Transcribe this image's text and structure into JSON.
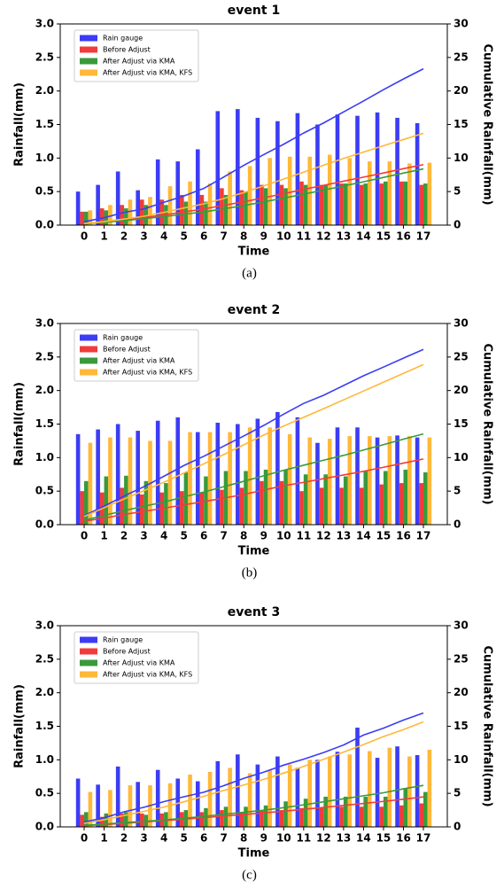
{
  "chart_data": [
    {
      "type": "bar",
      "title": "event 1",
      "caption": "(a)",
      "xlabel": "Time",
      "ylabel": "Rainfall(mm)",
      "y2label": "Cumulative Rainfall(mm)",
      "categories": [
        "0",
        "1",
        "2",
        "3",
        "4",
        "5",
        "6",
        "7",
        "8",
        "9",
        "10",
        "11",
        "12",
        "13",
        "14",
        "15",
        "16",
        "17"
      ],
      "ylim": [
        0,
        3
      ],
      "yticks": [
        {
          "value": 0,
          "label": "0.0"
        },
        {
          "value": 0.5,
          "label": "0.5"
        },
        {
          "value": 1,
          "label": "1.0"
        },
        {
          "value": 1.5,
          "label": "1.5"
        },
        {
          "value": 2,
          "label": "2.0"
        },
        {
          "value": 2.5,
          "label": "2.5"
        },
        {
          "value": 3,
          "label": "3.0"
        }
      ],
      "y2lim": [
        0,
        30
      ],
      "y2ticks": [
        0,
        5,
        10,
        15,
        20,
        25,
        30
      ],
      "legend": "upper left",
      "series": [
        {
          "name": "Rain gauge",
          "type": "bar",
          "color": "#3c3cf5",
          "values": [
            0.5,
            0.6,
            0.8,
            0.52,
            0.98,
            0.95,
            1.13,
            1.7,
            1.73,
            1.6,
            1.55,
            1.67,
            1.5,
            1.65,
            1.63,
            1.68,
            1.6,
            1.52
          ]
        },
        {
          "name": "Before Adjust",
          "type": "bar",
          "color": "#f03c3c",
          "values": [
            0.2,
            0.25,
            0.3,
            0.38,
            0.38,
            0.45,
            0.45,
            0.55,
            0.52,
            0.6,
            0.6,
            0.65,
            0.6,
            0.62,
            0.6,
            0.62,
            0.65,
            0.6
          ]
        },
        {
          "name": "After Adjust via KMA",
          "type": "bar",
          "color": "#3a9a3a",
          "values": [
            0.2,
            0.22,
            0.25,
            0.3,
            0.3,
            0.35,
            0.35,
            0.45,
            0.5,
            0.55,
            0.55,
            0.6,
            0.6,
            0.62,
            0.62,
            0.65,
            0.65,
            0.62
          ]
        },
        {
          "name": "After Adjust via KMA, KFS",
          "type": "bar",
          "color": "#ffb838",
          "values": [
            0.22,
            0.3,
            0.38,
            0.42,
            0.58,
            0.65,
            0.62,
            0.8,
            0.88,
            1.0,
            1.02,
            1.02,
            1.05,
            1.0,
            0.95,
            0.95,
            0.92,
            0.93
          ]
        },
        {
          "type": "line",
          "axis": "y2",
          "color": "#3c3cf5",
          "values": [
            0.5,
            1.1,
            1.9,
            2.42,
            3.4,
            4.35,
            5.48,
            7.18,
            8.91,
            10.51,
            12.06,
            13.73,
            15.23,
            16.88,
            18.51,
            20.19,
            21.79,
            23.31
          ]
        },
        {
          "type": "line",
          "axis": "y2",
          "color": "#f03c3c",
          "values": [
            0.2,
            0.45,
            0.75,
            1.13,
            1.51,
            1.96,
            2.41,
            2.96,
            3.48,
            4.08,
            4.68,
            5.33,
            5.93,
            6.55,
            7.15,
            7.77,
            8.42,
            9.02
          ]
        },
        {
          "type": "line",
          "axis": "y2",
          "color": "#3a9a3a",
          "values": [
            0.2,
            0.42,
            0.67,
            0.97,
            1.27,
            1.62,
            1.97,
            2.42,
            2.92,
            3.47,
            4.02,
            4.62,
            5.22,
            5.84,
            6.46,
            7.11,
            7.76,
            8.38
          ]
        },
        {
          "type": "line",
          "axis": "y2",
          "color": "#ffb838",
          "values": [
            0.22,
            0.52,
            0.9,
            1.32,
            1.9,
            2.55,
            3.17,
            3.97,
            4.85,
            5.85,
            6.87,
            7.89,
            8.94,
            9.94,
            10.89,
            11.84,
            12.76,
            13.69
          ]
        }
      ]
    },
    {
      "type": "bar",
      "title": "event 2",
      "caption": "(b)",
      "xlabel": "Time",
      "ylabel": "Rainfall(mm)",
      "y2label": "Cumulative Rainfall(mm)",
      "categories": [
        "0",
        "1",
        "2",
        "3",
        "4",
        "5",
        "6",
        "7",
        "8",
        "9",
        "10",
        "11",
        "12",
        "13",
        "14",
        "15",
        "16",
        "17"
      ],
      "ylim": [
        0,
        3
      ],
      "yticks": [
        {
          "value": 0,
          "label": "0.0"
        },
        {
          "value": 0.5,
          "label": "0.5"
        },
        {
          "value": 1,
          "label": "1.0"
        },
        {
          "value": 1.5,
          "label": "1.5"
        },
        {
          "value": 2,
          "label": "2.0"
        },
        {
          "value": 2.5,
          "label": "2.5"
        },
        {
          "value": 3,
          "label": "3.0"
        }
      ],
      "y2lim": [
        0,
        30
      ],
      "y2ticks": [
        0,
        5,
        10,
        15,
        20,
        25,
        30
      ],
      "legend": "upper left",
      "series": [
        {
          "name": "Rain gauge",
          "type": "bar",
          "color": "#3c3cf5",
          "values": [
            1.35,
            1.42,
            1.5,
            1.4,
            1.55,
            1.6,
            1.38,
            1.52,
            1.5,
            1.58,
            1.68,
            1.6,
            1.22,
            1.45,
            1.45,
            1.3,
            1.33,
            1.3
          ]
        },
        {
          "name": "Before Adjust",
          "type": "bar",
          "color": "#f03c3c",
          "values": [
            0.5,
            0.48,
            0.55,
            0.45,
            0.48,
            0.5,
            0.48,
            0.52,
            0.55,
            0.65,
            0.65,
            0.5,
            0.55,
            0.55,
            0.55,
            0.6,
            0.62,
            0.62
          ]
        },
        {
          "name": "After Adjust via KMA",
          "type": "bar",
          "color": "#3a9a3a",
          "values": [
            0.65,
            0.72,
            0.73,
            0.65,
            0.62,
            0.78,
            0.72,
            0.8,
            0.8,
            0.82,
            0.82,
            0.75,
            0.75,
            0.72,
            0.8,
            0.8,
            0.82,
            0.78
          ]
        },
        {
          "name": "After Adjust via KMA, KFS",
          "type": "bar",
          "color": "#ffb838",
          "values": [
            1.22,
            1.3,
            1.3,
            1.25,
            1.25,
            1.38,
            1.38,
            1.38,
            1.45,
            1.45,
            1.35,
            1.3,
            1.28,
            1.32,
            1.32,
            1.32,
            1.32,
            1.3
          ]
        },
        {
          "type": "line",
          "axis": "y2",
          "color": "#3c3cf5",
          "values": [
            1.35,
            2.77,
            4.27,
            5.67,
            7.22,
            8.82,
            10.2,
            11.72,
            13.22,
            14.8,
            16.48,
            18.08,
            19.3,
            20.75,
            22.2,
            23.5,
            24.83,
            26.13
          ]
        },
        {
          "type": "line",
          "axis": "y2",
          "color": "#f03c3c",
          "values": [
            0.5,
            0.98,
            1.53,
            1.98,
            2.46,
            2.96,
            3.44,
            3.96,
            4.51,
            5.16,
            5.81,
            6.31,
            6.86,
            7.41,
            7.96,
            8.56,
            9.18,
            9.8
          ]
        },
        {
          "type": "line",
          "axis": "y2",
          "color": "#3a9a3a",
          "values": [
            0.65,
            1.37,
            2.1,
            2.75,
            3.37,
            4.15,
            4.87,
            5.67,
            6.47,
            7.29,
            8.11,
            8.86,
            9.61,
            10.33,
            11.13,
            11.93,
            12.75,
            13.53
          ]
        },
        {
          "type": "line",
          "axis": "y2",
          "color": "#ffb838",
          "values": [
            1.22,
            2.52,
            3.82,
            5.07,
            6.32,
            7.7,
            9.08,
            10.46,
            11.91,
            13.36,
            14.71,
            16.01,
            17.29,
            18.61,
            19.93,
            21.25,
            22.57,
            23.87
          ]
        }
      ]
    },
    {
      "type": "bar",
      "title": "event 3",
      "caption": "(c)",
      "xlabel": "Time",
      "ylabel": "Rainfall(mm)",
      "y2label": "Cumulative Rainfall(mm)",
      "categories": [
        "0",
        "1",
        "2",
        "3",
        "4",
        "5",
        "6",
        "7",
        "8",
        "9",
        "10",
        "11",
        "12",
        "13",
        "14",
        "15",
        "16",
        "17"
      ],
      "ylim": [
        0,
        3
      ],
      "yticks": [
        {
          "value": 0,
          "label": "0.0"
        },
        {
          "value": 0.5,
          "label": "0.5"
        },
        {
          "value": 1,
          "label": "1.0"
        },
        {
          "value": 1.5,
          "label": "1.5"
        },
        {
          "value": 2,
          "label": "2.0"
        },
        {
          "value": 2.5,
          "label": "2.5"
        },
        {
          "value": 3,
          "label": "3.0"
        }
      ],
      "y2lim": [
        0,
        30
      ],
      "y2ticks": [
        0,
        5,
        10,
        15,
        20,
        25,
        30
      ],
      "legend": "upper left",
      "series": [
        {
          "name": "Rain gauge",
          "type": "bar",
          "color": "#3c3cf5",
          "values": [
            0.72,
            0.63,
            0.9,
            0.67,
            0.85,
            0.72,
            0.68,
            0.98,
            1.08,
            0.93,
            1.05,
            0.88,
            1.0,
            1.12,
            1.48,
            1.03,
            1.2,
            1.07
          ]
        },
        {
          "name": "Before Adjust",
          "type": "bar",
          "color": "#f03c3c",
          "values": [
            0.18,
            0.15,
            0.2,
            0.2,
            0.2,
            0.22,
            0.22,
            0.25,
            0.22,
            0.25,
            0.25,
            0.28,
            0.28,
            0.3,
            0.3,
            0.3,
            0.32,
            0.35
          ]
        },
        {
          "name": "After Adjust via KMA",
          "type": "bar",
          "color": "#3a9a3a",
          "values": [
            0.22,
            0.2,
            0.22,
            0.18,
            0.22,
            0.25,
            0.28,
            0.3,
            0.3,
            0.32,
            0.38,
            0.42,
            0.45,
            0.45,
            0.45,
            0.45,
            0.58,
            0.52
          ]
        },
        {
          "name": "After Adjust via KMA, KFS",
          "type": "bar",
          "color": "#ffb838",
          "values": [
            0.52,
            0.55,
            0.62,
            0.62,
            0.65,
            0.78,
            0.82,
            0.88,
            0.8,
            0.85,
            0.93,
            1.0,
            1.05,
            1.08,
            1.13,
            1.18,
            1.05,
            1.15
          ]
        },
        {
          "type": "line",
          "axis": "y2",
          "color": "#3c3cf5",
          "values": [
            0.72,
            1.35,
            2.25,
            2.92,
            3.77,
            4.49,
            5.17,
            6.15,
            7.23,
            8.16,
            9.21,
            10.09,
            11.09,
            12.21,
            13.69,
            14.72,
            15.92,
            16.99
          ]
        },
        {
          "type": "line",
          "axis": "y2",
          "color": "#f03c3c",
          "values": [
            0.18,
            0.33,
            0.53,
            0.73,
            0.93,
            1.15,
            1.37,
            1.62,
            1.84,
            2.09,
            2.34,
            2.62,
            2.9,
            3.2,
            3.5,
            3.8,
            4.12,
            4.47
          ]
        },
        {
          "type": "line",
          "axis": "y2",
          "color": "#3a9a3a",
          "values": [
            0.22,
            0.42,
            0.64,
            0.82,
            1.04,
            1.29,
            1.57,
            1.87,
            2.17,
            2.49,
            2.87,
            3.29,
            3.74,
            4.19,
            4.64,
            5.09,
            5.67,
            6.19
          ]
        },
        {
          "type": "line",
          "axis": "y2",
          "color": "#ffb838",
          "values": [
            0.52,
            1.07,
            1.69,
            2.31,
            2.96,
            3.74,
            4.56,
            5.44,
            6.24,
            7.09,
            8.02,
            9.02,
            10.07,
            11.15,
            12.28,
            13.46,
            14.51,
            15.66
          ]
        }
      ]
    }
  ]
}
